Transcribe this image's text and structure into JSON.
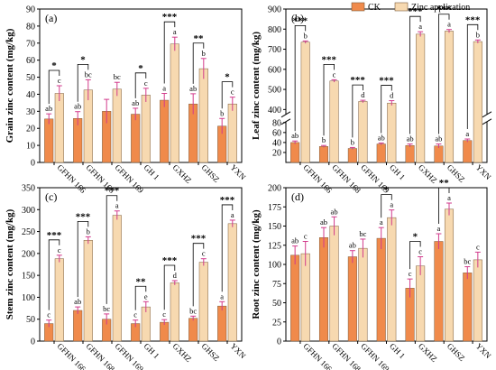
{
  "legend": {
    "items": [
      {
        "label": "CK",
        "color": "#F08A4B"
      },
      {
        "label": "Zinc application",
        "color": "#F7D9B0"
      }
    ]
  },
  "colors": {
    "ck": "#F08A4B",
    "zn": "#F7D9B0",
    "err": "#D23B8C",
    "axis": "#000000"
  },
  "chart_data": [
    {
      "type": "bar",
      "panel": "(a)",
      "ylabel": "Grain zinc content (mg/kg)",
      "ylim": [
        0,
        90
      ],
      "yticks": [
        0,
        10,
        20,
        30,
        40,
        50,
        60,
        70,
        80,
        90
      ],
      "categories": [
        "GFHN 166",
        "GFHN 168",
        "GFHN 169",
        "GH 1",
        "GXHZ",
        "GHSZ",
        "YXN"
      ],
      "series": [
        {
          "name": "CK",
          "values": [
            25.5,
            25.8,
            30.0,
            28.3,
            36.5,
            34.3,
            21.3
          ],
          "errors": [
            3,
            4,
            7,
            3.5,
            4,
            6,
            4.5
          ],
          "letters": [
            "ab",
            "ab",
            "",
            "ab",
            "a",
            "ab",
            "b"
          ]
        },
        {
          "name": "Zinc application",
          "values": [
            40.5,
            42.5,
            43.0,
            39.5,
            69.5,
            55.0,
            34.3
          ],
          "errors": [
            4.5,
            6,
            4,
            4,
            4,
            6,
            4
          ],
          "letters": [
            "c",
            "bc",
            "bc",
            "c",
            "a",
            "b",
            "c"
          ]
        }
      ],
      "significance": [
        "*",
        "*",
        "",
        "*",
        "***",
        "**",
        "*"
      ]
    },
    {
      "type": "bar",
      "panel": "(b)",
      "ylabel": "Leaf zinc content (mg/kg)",
      "broken_axis": true,
      "ylim_lower": [
        0,
        80
      ],
      "ylim_upper": [
        380,
        900
      ],
      "yticks_lower": [
        20,
        40,
        60,
        80
      ],
      "yticks_upper": [
        400,
        500,
        600,
        700,
        800,
        900
      ],
      "categories": [
        "GFHN 166",
        "GFHN 168",
        "GFHN 169",
        "GH 1",
        "GXHZ",
        "GHSZ",
        "YXN"
      ],
      "series": [
        {
          "name": "CK",
          "values": [
            40,
            32,
            28,
            37,
            34,
            33,
            44
          ],
          "errors": [
            3,
            2,
            2,
            2,
            3,
            4,
            3
          ],
          "letters": [
            "ab",
            "b",
            "b",
            "ab",
            "ab",
            "ab",
            "a"
          ]
        },
        {
          "name": "Zinc application",
          "values": [
            735,
            542,
            440,
            432,
            775,
            790,
            738
          ],
          "errors": [
            6,
            6,
            6,
            12,
            12,
            8,
            8
          ],
          "letters": [
            "b",
            "c",
            "d",
            "d",
            "a",
            "a",
            "b"
          ]
        }
      ],
      "significance": [
        "***",
        "***",
        "***",
        "***",
        "***",
        "***",
        "***"
      ]
    },
    {
      "type": "bar",
      "panel": "(c)",
      "ylabel": "Stem zinc content (mg/kg)",
      "ylim": [
        0,
        350
      ],
      "yticks": [
        0,
        50,
        100,
        150,
        200,
        250,
        300,
        350
      ],
      "categories": [
        "GFHN 166",
        "GFHN 168",
        "GFHN 169",
        "GH 1",
        "GXHZ",
        "GHSZ",
        "YXN"
      ],
      "series": [
        {
          "name": "CK",
          "values": [
            40,
            70,
            50,
            40,
            43,
            52,
            80
          ],
          "errors": [
            8,
            8,
            12,
            8,
            6,
            5,
            10
          ],
          "letters": [
            "c",
            "ab",
            "bc",
            "c",
            "c",
            "bc",
            "a"
          ]
        },
        {
          "name": "Zinc application",
          "values": [
            188,
            230,
            287,
            78,
            133,
            180,
            268
          ],
          "errors": [
            8,
            8,
            10,
            12,
            5,
            8,
            8
          ],
          "letters": [
            "c",
            "b",
            "a",
            "e",
            "d",
            "c",
            "a"
          ]
        }
      ],
      "significance": [
        "***",
        "***",
        "***",
        "**",
        "***",
        "***",
        "***"
      ]
    },
    {
      "type": "bar",
      "panel": "(d)",
      "ylabel": "Root zinc content (mg/kg)",
      "ylim": [
        0,
        200
      ],
      "yticks": [
        0,
        25,
        50,
        75,
        100,
        125,
        150,
        175,
        200
      ],
      "categories": [
        "GFHN 166",
        "GFHN 168",
        "GFHN 169",
        "GH 1",
        "GXHZ",
        "GHSZ",
        "YXN"
      ],
      "series": [
        {
          "name": "CK",
          "values": [
            112,
            135,
            110,
            134,
            69,
            130,
            89
          ],
          "errors": [
            12,
            13,
            8,
            14,
            12,
            10,
            8
          ],
          "letters": [
            "ab",
            "ab",
            "ab",
            "a",
            "c",
            "a",
            "bc"
          ]
        },
        {
          "name": "Zinc application",
          "values": [
            114,
            150,
            121,
            161,
            98,
            172,
            106
          ],
          "errors": [
            16,
            12,
            12,
            10,
            12,
            8,
            10
          ],
          "letters": [
            "c",
            "ab",
            "bc",
            "a",
            "c",
            "a",
            "c"
          ]
        }
      ],
      "significance": [
        "",
        "",
        "",
        "*",
        "*",
        "**",
        ""
      ]
    }
  ]
}
